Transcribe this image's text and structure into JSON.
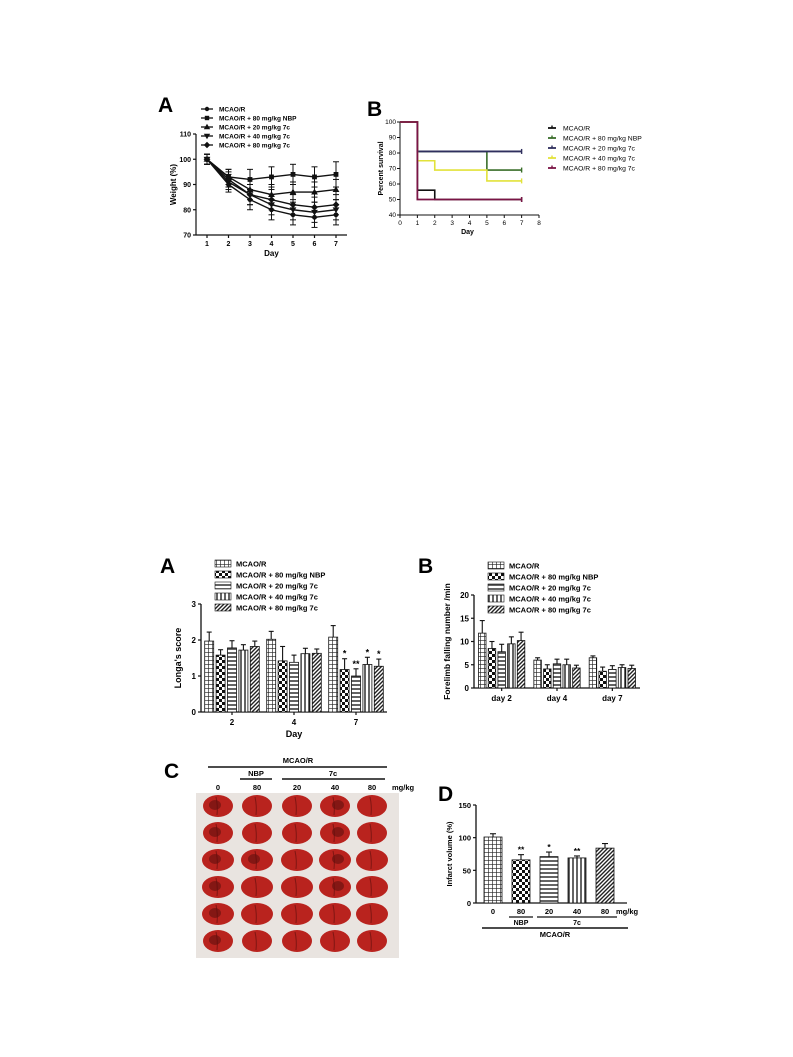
{
  "colors": {
    "axis": "#111111",
    "surv_colors": [
      "#111111",
      "#3a6e2a",
      "#2f2f5e",
      "#e2e23a",
      "#7a1445"
    ],
    "tissue": "#b9231e",
    "tissue_dark": "#5a0e0c",
    "photo_bg": "#e9e4e0"
  },
  "fig1": {
    "panel_a": {
      "letter": "A",
      "chart_data": {
        "type": "line",
        "xlabel": "Day",
        "ylabel": "Weight (%)",
        "x": [
          1,
          2,
          3,
          4,
          5,
          6,
          7
        ],
        "ylim": [
          70,
          110
        ],
        "yticks": [
          70,
          80,
          90,
          100,
          110
        ],
        "legend_position": "top-left",
        "series": [
          {
            "name": "MCAO/R",
            "marker": "circle",
            "values": [
              100,
              90,
              84,
              80,
              78,
              77,
              78
            ],
            "err": [
              2,
              3,
              4,
              4,
              4,
              4,
              4
            ]
          },
          {
            "name": "MCAO/R + 80 mg/kg NBP",
            "marker": "square",
            "values": [
              100,
              93,
              92,
              93,
              94,
              93,
              94
            ],
            "err": [
              2,
              3,
              4,
              4,
              4,
              4,
              5
            ]
          },
          {
            "name": "MCAO/R + 20 mg/kg 7c",
            "marker": "triangle-up",
            "values": [
              100,
              93,
              88,
              86,
              87,
              87,
              88
            ],
            "err": [
              2,
              3,
              4,
              4,
              4,
              4,
              4
            ]
          },
          {
            "name": "MCAO/R + 40 mg/kg 7c",
            "marker": "triangle-down",
            "values": [
              100,
              91,
              86,
              82,
              80,
              79,
              80
            ],
            "err": [
              2,
              3,
              4,
              4,
              4,
              4,
              4
            ]
          },
          {
            "name": "MCAO/R + 80 mg/kg 7c",
            "marker": "diamond",
            "values": [
              100,
              92,
              86,
              84,
              82,
              81,
              82
            ],
            "err": [
              2,
              3,
              4,
              4,
              4,
              4,
              4
            ]
          }
        ]
      }
    },
    "panel_b": {
      "letter": "B",
      "chart_data": {
        "type": "line",
        "step": true,
        "xlabel": "Day",
        "ylabel": "Percent survival",
        "xlim": [
          0,
          8
        ],
        "xticks": [
          0,
          1,
          2,
          3,
          4,
          5,
          6,
          7,
          8
        ],
        "ylim": [
          40,
          100
        ],
        "yticks": [
          40,
          50,
          60,
          70,
          80,
          90,
          100
        ],
        "legend_position": "right",
        "series": [
          {
            "name": "MCAO/R",
            "steps": [
              [
                0,
                100
              ],
              [
                1,
                56
              ],
              [
                2,
                50
              ],
              [
                7,
                50
              ]
            ]
          },
          {
            "name": "MCAO/R + 80 mg/kg NBP",
            "steps": [
              [
                0,
                100
              ],
              [
                1,
                81
              ],
              [
                5,
                69
              ],
              [
                7,
                69
              ]
            ]
          },
          {
            "name": "MCAO/R + 20 mg/kg 7c",
            "steps": [
              [
                0,
                100
              ],
              [
                1,
                81
              ],
              [
                7,
                81
              ]
            ]
          },
          {
            "name": "MCAO/R + 40 mg/kg 7c",
            "steps": [
              [
                0,
                100
              ],
              [
                1,
                75
              ],
              [
                2,
                69
              ],
              [
                5,
                62
              ],
              [
                7,
                62
              ]
            ]
          },
          {
            "name": "MCAO/R + 80 mg/kg 7c",
            "steps": [
              [
                0,
                100
              ],
              [
                1,
                50
              ],
              [
                7,
                50
              ]
            ]
          }
        ]
      }
    }
  },
  "fig2": {
    "legend": [
      "MCAO/R",
      "MCAO/R + 80 mg/kg NBP",
      "MCAO/R + 20 mg/kg 7c",
      "MCAO/R + 40 mg/kg 7c",
      "MCAO/R + 80 mg/kg 7c"
    ],
    "panel_a": {
      "letter": "A",
      "chart_data": {
        "type": "bar",
        "xlabel": "Day",
        "ylabel": "Longa's score",
        "categories": [
          "2",
          "4",
          "7"
        ],
        "ylim": [
          0,
          3
        ],
        "yticks": [
          0,
          1,
          2,
          3
        ],
        "legend_position": "top",
        "series": [
          {
            "name": "MCAO/R",
            "values": [
              1.97,
              2.02,
              2.08
            ],
            "err": [
              0.25,
              0.22,
              0.32
            ],
            "sig": [
              "",
              "",
              ""
            ]
          },
          {
            "name": "MCAO/R + 80 mg/kg NBP",
            "values": [
              1.58,
              1.42,
              1.18
            ],
            "err": [
              0.15,
              0.4,
              0.3
            ],
            "sig": [
              "",
              "",
              "*"
            ]
          },
          {
            "name": "MCAO/R + 20 mg/kg 7c",
            "values": [
              1.78,
              1.38,
              1.0
            ],
            "err": [
              0.2,
              0.2,
              0.2
            ],
            "sig": [
              "",
              "",
              "**"
            ]
          },
          {
            "name": "MCAO/R + 40 mg/kg 7c",
            "values": [
              1.72,
              1.62,
              1.32
            ],
            "err": [
              0.15,
              0.15,
              0.2
            ],
            "sig": [
              "",
              "",
              "*"
            ]
          },
          {
            "name": "MCAO/R + 80 mg/kg 7c",
            "values": [
              1.82,
              1.63,
              1.27
            ],
            "err": [
              0.15,
              0.12,
              0.2
            ],
            "sig": [
              "",
              "",
              "*"
            ]
          }
        ]
      }
    },
    "panel_b": {
      "letter": "B",
      "chart_data": {
        "type": "bar",
        "xlabel": "",
        "ylabel": "Forelimb falling number /min",
        "categories": [
          "day 2",
          "day 4",
          "day 7"
        ],
        "ylim": [
          0,
          20
        ],
        "yticks": [
          0,
          5,
          10,
          15,
          20
        ],
        "legend_position": "top",
        "series": [
          {
            "name": "MCAO/R",
            "values": [
              11.8,
              6.0,
              6.5
            ],
            "err": [
              2.7,
              0.5,
              0.4
            ]
          },
          {
            "name": "MCAO/R + 80 mg/kg NBP",
            "values": [
              8.5,
              4.1,
              3.6
            ],
            "err": [
              1.5,
              0.9,
              0.9
            ]
          },
          {
            "name": "MCAO/R + 20 mg/kg 7c",
            "values": [
              7.8,
              5.2,
              4.0
            ],
            "err": [
              1.6,
              1.0,
              0.8
            ]
          },
          {
            "name": "MCAO/R + 40 mg/kg 7c",
            "values": [
              9.5,
              5.0,
              4.4
            ],
            "err": [
              1.5,
              1.2,
              0.6
            ]
          },
          {
            "name": "MCAO/R + 80 mg/kg 7c",
            "values": [
              10.2,
              4.3,
              4.2
            ],
            "err": [
              1.8,
              0.6,
              0.7
            ]
          }
        ]
      }
    },
    "panel_c": {
      "letter": "C",
      "group_label": "MCAO/R",
      "nbp_label": "NBP",
      "drug_label": "7c",
      "unit": "mg/kg",
      "columns": [
        "0",
        "80",
        "20",
        "40",
        "80"
      ],
      "rows": 6
    },
    "panel_d": {
      "letter": "D",
      "chart_data": {
        "type": "bar",
        "ylabel": "Infarct volume (%)",
        "categories": [
          "0",
          "80",
          "20",
          "40",
          "80"
        ],
        "unit_label": "mg/kg",
        "ylim": [
          0,
          150
        ],
        "yticks": [
          0,
          50,
          100,
          150
        ],
        "values": [
          101,
          66,
          71,
          69,
          84
        ],
        "err": [
          5,
          8,
          7,
          3,
          7
        ],
        "sig": [
          "",
          "**",
          "*",
          "**",
          ""
        ],
        "group_labels": {
          "nbp": "NBP",
          "drug": "7c",
          "all": "MCAO/R"
        }
      }
    }
  }
}
